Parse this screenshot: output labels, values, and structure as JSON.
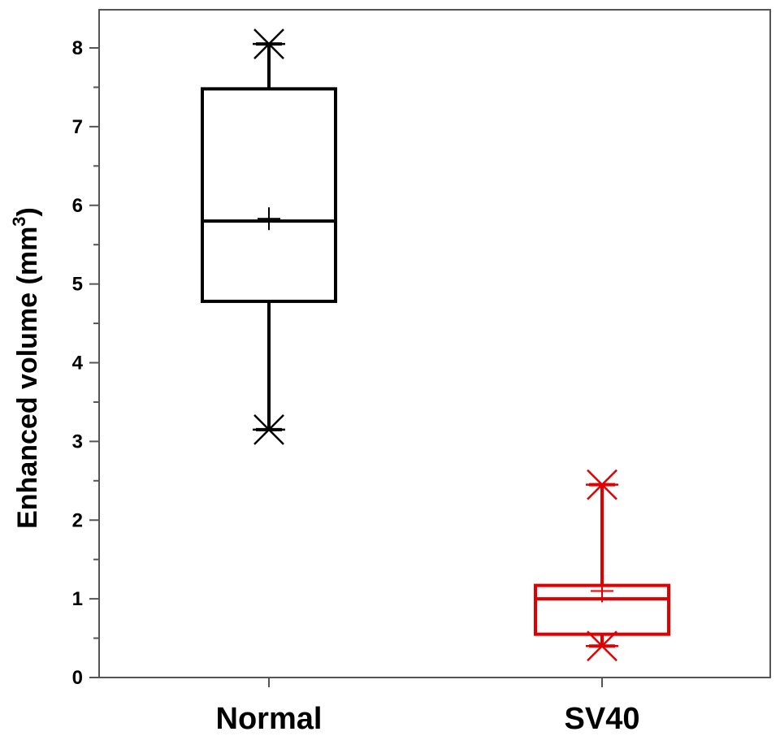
{
  "chart_data": {
    "type": "box",
    "title": "",
    "xlabel": "",
    "ylabel": {
      "main": "Enhanced volume (mm",
      "superscript": "3",
      "close": ")"
    },
    "ylim": [
      0,
      8.5
    ],
    "yticks": [
      "0",
      "1",
      "2",
      "3",
      "4",
      "5",
      "6",
      "7",
      "8"
    ],
    "grid": false,
    "categories": [
      "Normal",
      "SV40"
    ],
    "series": [
      {
        "name": "Normal",
        "color": "#000000",
        "whisker_low": 3.15,
        "q1": 4.78,
        "median": 5.8,
        "q3": 7.48,
        "whisker_high": 8.05,
        "mean": 5.83,
        "min_marker": 3.15,
        "max_marker": 8.05
      },
      {
        "name": "SV40",
        "color": "#e00000",
        "whisker_low": 0.4,
        "q1": 0.55,
        "median": 1.0,
        "q3": 1.17,
        "whisker_high": 2.45,
        "mean": 1.1,
        "min_marker": 0.4,
        "max_marker": 2.45
      }
    ]
  }
}
